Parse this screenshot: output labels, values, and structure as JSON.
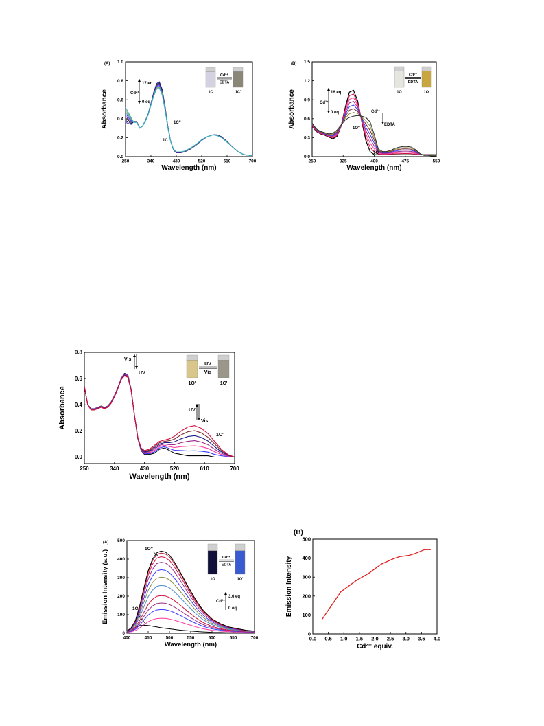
{
  "chart_data": [
    {
      "id": "A",
      "type": "line",
      "panel_label": "(A)",
      "xlabel": "Wavelength (nm)",
      "ylabel": "Absorbance",
      "xlim": [
        250,
        700
      ],
      "ylim": [
        0.0,
        1.0
      ],
      "xticks": [
        250,
        340,
        430,
        520,
        610,
        700
      ],
      "yticks": [
        "0.0",
        "0.2",
        "0.4",
        "0.6",
        "0.8",
        "1.0"
      ],
      "series_colors": [
        "#2a2aa8",
        "#1a1a6a",
        "#333333",
        "#6a2aa0",
        "#4444ff",
        "#3aa0a0",
        "#9aa060",
        "#2ab0c8"
      ],
      "x": [
        250,
        270,
        280,
        290,
        300,
        310,
        320,
        330,
        340,
        350,
        360,
        370,
        380,
        390,
        400,
        410,
        420,
        430,
        445,
        460,
        480,
        500,
        520,
        540,
        560,
        575,
        590,
        610,
        630,
        650,
        670,
        700
      ],
      "base": [
        0.36,
        0.34,
        0.37,
        0.37,
        0.3,
        0.32,
        0.38,
        0.45,
        0.56,
        0.68,
        0.77,
        0.79,
        0.71,
        0.53,
        0.32,
        0.16,
        0.07,
        0.04,
        0.04,
        0.05,
        0.08,
        0.12,
        0.17,
        0.21,
        0.23,
        0.23,
        0.21,
        0.16,
        0.1,
        0.05,
        0.02,
        0.01
      ],
      "end": [
        0.52,
        0.41,
        0.36,
        0.36,
        0.3,
        0.32,
        0.37,
        0.44,
        0.54,
        0.64,
        0.71,
        0.72,
        0.65,
        0.49,
        0.3,
        0.16,
        0.08,
        0.05,
        0.05,
        0.06,
        0.09,
        0.13,
        0.18,
        0.21,
        0.23,
        0.22,
        0.2,
        0.15,
        0.1,
        0.05,
        0.02,
        0.01
      ],
      "annotations": {
        "cd_label": "Cd²⁺",
        "top": "17 eq",
        "bottom": "0 eq",
        "label_1C2": "1C''",
        "label_1C": "1C"
      },
      "inset": {
        "left": "1C",
        "right": "1C'",
        "arrow_top": "Cd²⁺",
        "arrow_bottom": "EDTA",
        "left_color": "#d4d2e0",
        "right_color": "#8a8678"
      }
    },
    {
      "id": "B",
      "type": "line",
      "panel_label": "(B)",
      "xlabel": "Wavelength (nm)",
      "ylabel": "Absorbance",
      "xlim": [
        250,
        550
      ],
      "ylim": [
        0.0,
        1.5
      ],
      "xticks": [
        250,
        325,
        400,
        475,
        550
      ],
      "yticks": [
        "0.0",
        "0.3",
        "0.6",
        "0.9",
        "1.2",
        "1.5"
      ],
      "series_colors": [
        "#000000",
        "#d01040",
        "#ff3aa0",
        "#9a2a8a",
        "#3a3aff",
        "#7a2a2a",
        "#8a8a40",
        "#2a2a2a"
      ],
      "x": [
        250,
        260,
        270,
        280,
        290,
        300,
        310,
        320,
        330,
        340,
        350,
        360,
        370,
        380,
        390,
        400,
        410,
        420,
        430,
        440,
        450,
        460,
        470,
        480,
        490,
        500,
        510,
        520,
        530,
        540,
        550
      ],
      "s0": [
        0.48,
        0.4,
        0.36,
        0.34,
        0.31,
        0.28,
        0.32,
        0.48,
        0.78,
        1.02,
        1.05,
        0.88,
        0.55,
        0.25,
        0.08,
        0.03,
        0.03,
        0.03,
        0.03,
        0.03,
        0.03,
        0.03,
        0.03,
        0.03,
        0.03,
        0.03,
        0.03,
        0.03,
        0.03,
        0.03,
        0.03
      ],
      "s1": [
        0.53,
        0.44,
        0.4,
        0.38,
        0.36,
        0.37,
        0.42,
        0.5,
        0.58,
        0.62,
        0.64,
        0.65,
        0.64,
        0.62,
        0.55,
        0.35,
        0.12,
        0.08,
        0.08,
        0.1,
        0.13,
        0.15,
        0.16,
        0.16,
        0.15,
        0.11,
        0.05,
        0.02,
        0.02,
        0.01,
        0.01
      ],
      "annotations": {
        "cd_label": "Cd²⁺",
        "top": "16 eq",
        "bottom": "0 eq",
        "cd_edta_top": "Cd²⁺",
        "cd_edta_bottom": "EDTA",
        "label_1O2": "1O''",
        "label_1O": "1O"
      },
      "inset": {
        "left": "1O",
        "right": "1O'",
        "arrow_top": "Cd²⁺",
        "arrow_bottom": "EDTA",
        "left_color": "#e6e6e0",
        "right_color": "#c8a640"
      }
    },
    {
      "id": "C",
      "type": "line",
      "panel_label": "",
      "xlabel": "Wavelength (nm)",
      "ylabel": "Absorbance",
      "xlim": [
        250,
        700
      ],
      "ylim": [
        -0.05,
        0.8
      ],
      "xticks": [
        250,
        340,
        430,
        520,
        610,
        700
      ],
      "yticks": [
        "0.0",
        "0.2",
        "0.4",
        "0.6",
        "0.8"
      ],
      "series_colors": [
        "#000000",
        "#3a3aff",
        "#ff3aa0",
        "#9a2a8a",
        "#1a1a8a",
        "#7a2a2a",
        "#d01040"
      ],
      "x": [
        250,
        260,
        270,
        280,
        290,
        300,
        310,
        320,
        330,
        340,
        350,
        360,
        370,
        380,
        390,
        400,
        410,
        420,
        430,
        445,
        460,
        475,
        490,
        505,
        520,
        540,
        560,
        580,
        600,
        620,
        640,
        660,
        680,
        700
      ],
      "s0": [
        0.54,
        0.4,
        0.37,
        0.37,
        0.38,
        0.39,
        0.38,
        0.39,
        0.42,
        0.47,
        0.53,
        0.6,
        0.64,
        0.63,
        0.52,
        0.32,
        0.14,
        0.05,
        0.02,
        0.02,
        0.03,
        0.06,
        0.07,
        0.05,
        0.03,
        0.02,
        0.01,
        0.01,
        0.01,
        0.01,
        0.0,
        0.0,
        0.0,
        0.0
      ],
      "s1": [
        0.54,
        0.4,
        0.36,
        0.36,
        0.37,
        0.38,
        0.37,
        0.38,
        0.41,
        0.46,
        0.52,
        0.59,
        0.62,
        0.61,
        0.51,
        0.32,
        0.15,
        0.07,
        0.05,
        0.06,
        0.09,
        0.12,
        0.13,
        0.14,
        0.16,
        0.2,
        0.23,
        0.24,
        0.22,
        0.18,
        0.12,
        0.06,
        0.02,
        0.0
      ],
      "annotations": {
        "vis_uv_top": "Vis",
        "vis_uv_bottom": "UV",
        "uv_vis_top": "UV",
        "uv_vis_bottom": "Vis",
        "label_1C": "1C'",
        "label_1O": "1O''"
      },
      "inset": {
        "left": "1O'",
        "right": "1C'",
        "arrow_top": "UV",
        "arrow_bottom": "Vis",
        "left_color": "#d8c68a",
        "right_color": "#9a968a"
      }
    },
    {
      "id": "D",
      "type": "line",
      "panel_label": "(A)",
      "xlabel": "Wavelength (nm)",
      "ylabel": "Emission Intensity (a.u.)",
      "xlim": [
        400,
        700
      ],
      "ylim": [
        0,
        500
      ],
      "xticks": [
        400,
        450,
        500,
        550,
        600,
        650,
        700
      ],
      "yticks": [
        "0",
        "100",
        "200",
        "300",
        "400",
        "500"
      ],
      "series_colors": [
        "#000000",
        "#ff3aa0",
        "#3a3aff",
        "#9a2a8a",
        "#d01040",
        "#4a8ad0",
        "#8a8a40",
        "#3a3aff",
        "#9a2a8a",
        "#d01040",
        "#b02a40"
      ],
      "x": [
        400,
        410,
        420,
        430,
        440,
        450,
        460,
        470,
        480,
        490,
        500,
        510,
        520,
        530,
        540,
        550,
        560,
        570,
        580,
        590,
        600,
        620,
        640,
        660,
        680,
        700
      ],
      "shape": [
        0.02,
        0.06,
        0.15,
        0.33,
        0.55,
        0.76,
        0.9,
        0.98,
        1.0,
        0.99,
        0.95,
        0.88,
        0.79,
        0.7,
        0.6,
        0.51,
        0.42,
        0.34,
        0.27,
        0.22,
        0.17,
        0.11,
        0.07,
        0.05,
        0.03,
        0.02
      ],
      "peaks": [
        0,
        78,
        125,
        160,
        200,
        255,
        300,
        340,
        380,
        410,
        430,
        440
      ],
      "s0": [
        5,
        18,
        32,
        41,
        43,
        42,
        38,
        34,
        30,
        27,
        24,
        21,
        18,
        16,
        14,
        12,
        10,
        8,
        7,
        6,
        5,
        4,
        3,
        3,
        2,
        2
      ],
      "annotations": {
        "label_1O2": "1O''",
        "label_1O": "1O",
        "cd_label": "Cd²⁺",
        "top": "3.6 eq",
        "bottom": "0 eq"
      },
      "inset": {
        "left": "1O",
        "right": "1O'",
        "arrow_top": "Cd²⁺",
        "arrow_bottom": "EDTA",
        "left_color": "#10103a",
        "right_color": "#3a5ad0"
      }
    },
    {
      "id": "E",
      "type": "line",
      "panel_label": "(B)",
      "xlabel": "Cd²⁺ equiv.",
      "ylabel": "Emission Intensity",
      "xlim": [
        0.0,
        4.0
      ],
      "ylim": [
        0,
        500
      ],
      "xticks": [
        "0.0",
        "0.5",
        "1.0",
        "1.5",
        "2.0",
        "2.5",
        "3.0",
        "3.5",
        "4.0"
      ],
      "yticks": [
        "0",
        "100",
        "200",
        "300",
        "400",
        "500"
      ],
      "color": "#e02020",
      "x": [
        0.3,
        0.9,
        1.4,
        1.8,
        2.2,
        2.6,
        2.8,
        3.1,
        3.3,
        3.6,
        3.8
      ],
      "y": [
        78,
        222,
        282,
        320,
        368,
        397,
        408,
        415,
        425,
        445,
        445
      ]
    }
  ]
}
